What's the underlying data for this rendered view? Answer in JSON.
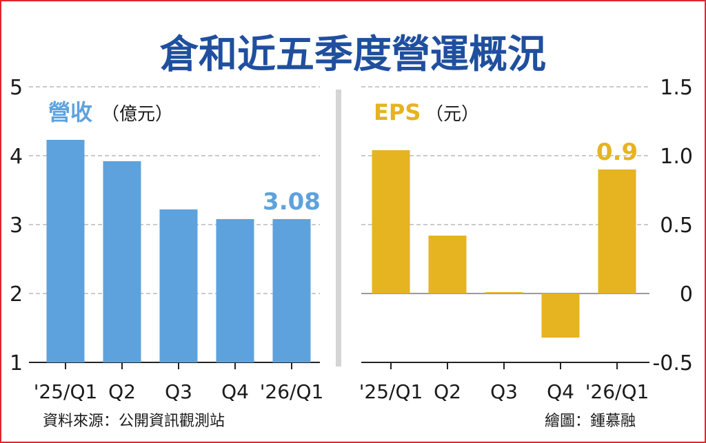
{
  "title": "倉和近五季度營運概況",
  "title_color": "#1f4f9e",
  "accent_color": "#e0262b",
  "revenue_color": "#5ea2dd",
  "eps_color": "#e6b321",
  "source": "資料來源：公開資訊觀測站",
  "credit": "繪圖：鍾慕融",
  "chart_data": [
    {
      "type": "bar",
      "series_label": "營收",
      "unit": "（億元）",
      "categories": [
        "'25/Q1",
        "Q2",
        "Q3",
        "Q4",
        "'26/Q1"
      ],
      "series": [
        {
          "values": [
            4.23,
            3.92,
            3.22,
            3.08,
            3.08
          ]
        }
      ],
      "ylim": [
        1,
        5
      ],
      "yticks": [
        "1",
        "2",
        "3",
        "4",
        "5"
      ],
      "grid": true,
      "annotations": [
        {
          "category": "'26/Q1",
          "text": "3.08"
        }
      ]
    },
    {
      "type": "bar",
      "series_label": "EPS",
      "unit": "（元）",
      "categories": [
        "'25/Q1",
        "Q2",
        "Q3",
        "Q4",
        "'26/Q1"
      ],
      "series": [
        {
          "values": [
            1.04,
            0.42,
            0.01,
            -0.32,
            0.9
          ]
        }
      ],
      "ylim": [
        -0.5,
        1.5
      ],
      "yticks": [
        "-0.5",
        "0",
        "0.5",
        "1.0",
        "1.5"
      ],
      "grid": true,
      "annotations": [
        {
          "category": "'26/Q1",
          "text": "0.9"
        }
      ]
    }
  ]
}
